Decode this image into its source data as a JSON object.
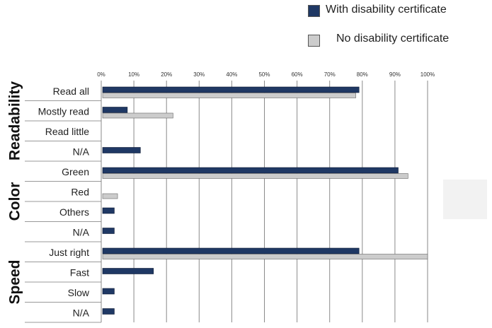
{
  "colors": {
    "with_cert": "#1f3864",
    "no_cert": "#cccccc",
    "grid": "#8a8a8a",
    "axis_text": "#333333"
  },
  "legend": [
    {
      "label": "With disability certificate",
      "color": "#1f3864"
    },
    {
      "label": "No disability certificate",
      "color": "#cccccc"
    }
  ],
  "chart_data": {
    "type": "bar",
    "orientation": "horizontal",
    "xlim": [
      0,
      100
    ],
    "x_ticks": [
      "0%",
      "10%",
      "20%",
      "30%",
      "40%",
      "50%",
      "60%",
      "70%",
      "80%",
      "90%",
      "100%"
    ],
    "grid": true,
    "legend_position": "top-right",
    "groups": [
      {
        "name": "Readability",
        "categories": [
          "Read all",
          "Mostly read",
          "Read little",
          "N/A"
        ]
      },
      {
        "name": "Color",
        "categories": [
          "Green",
          "Red",
          "Others",
          "N/A"
        ]
      },
      {
        "name": "Speed",
        "categories": [
          "Just right",
          "Fast",
          "Slow",
          "N/A"
        ]
      }
    ],
    "series": [
      {
        "name": "With disability certificate",
        "values": [
          79,
          8,
          0,
          12,
          91,
          0,
          4,
          4,
          79,
          16,
          4,
          4
        ]
      },
      {
        "name": "No disability certificate",
        "values": [
          78,
          22,
          0,
          0,
          94,
          5,
          0,
          0,
          100,
          0,
          0,
          0
        ]
      }
    ]
  }
}
